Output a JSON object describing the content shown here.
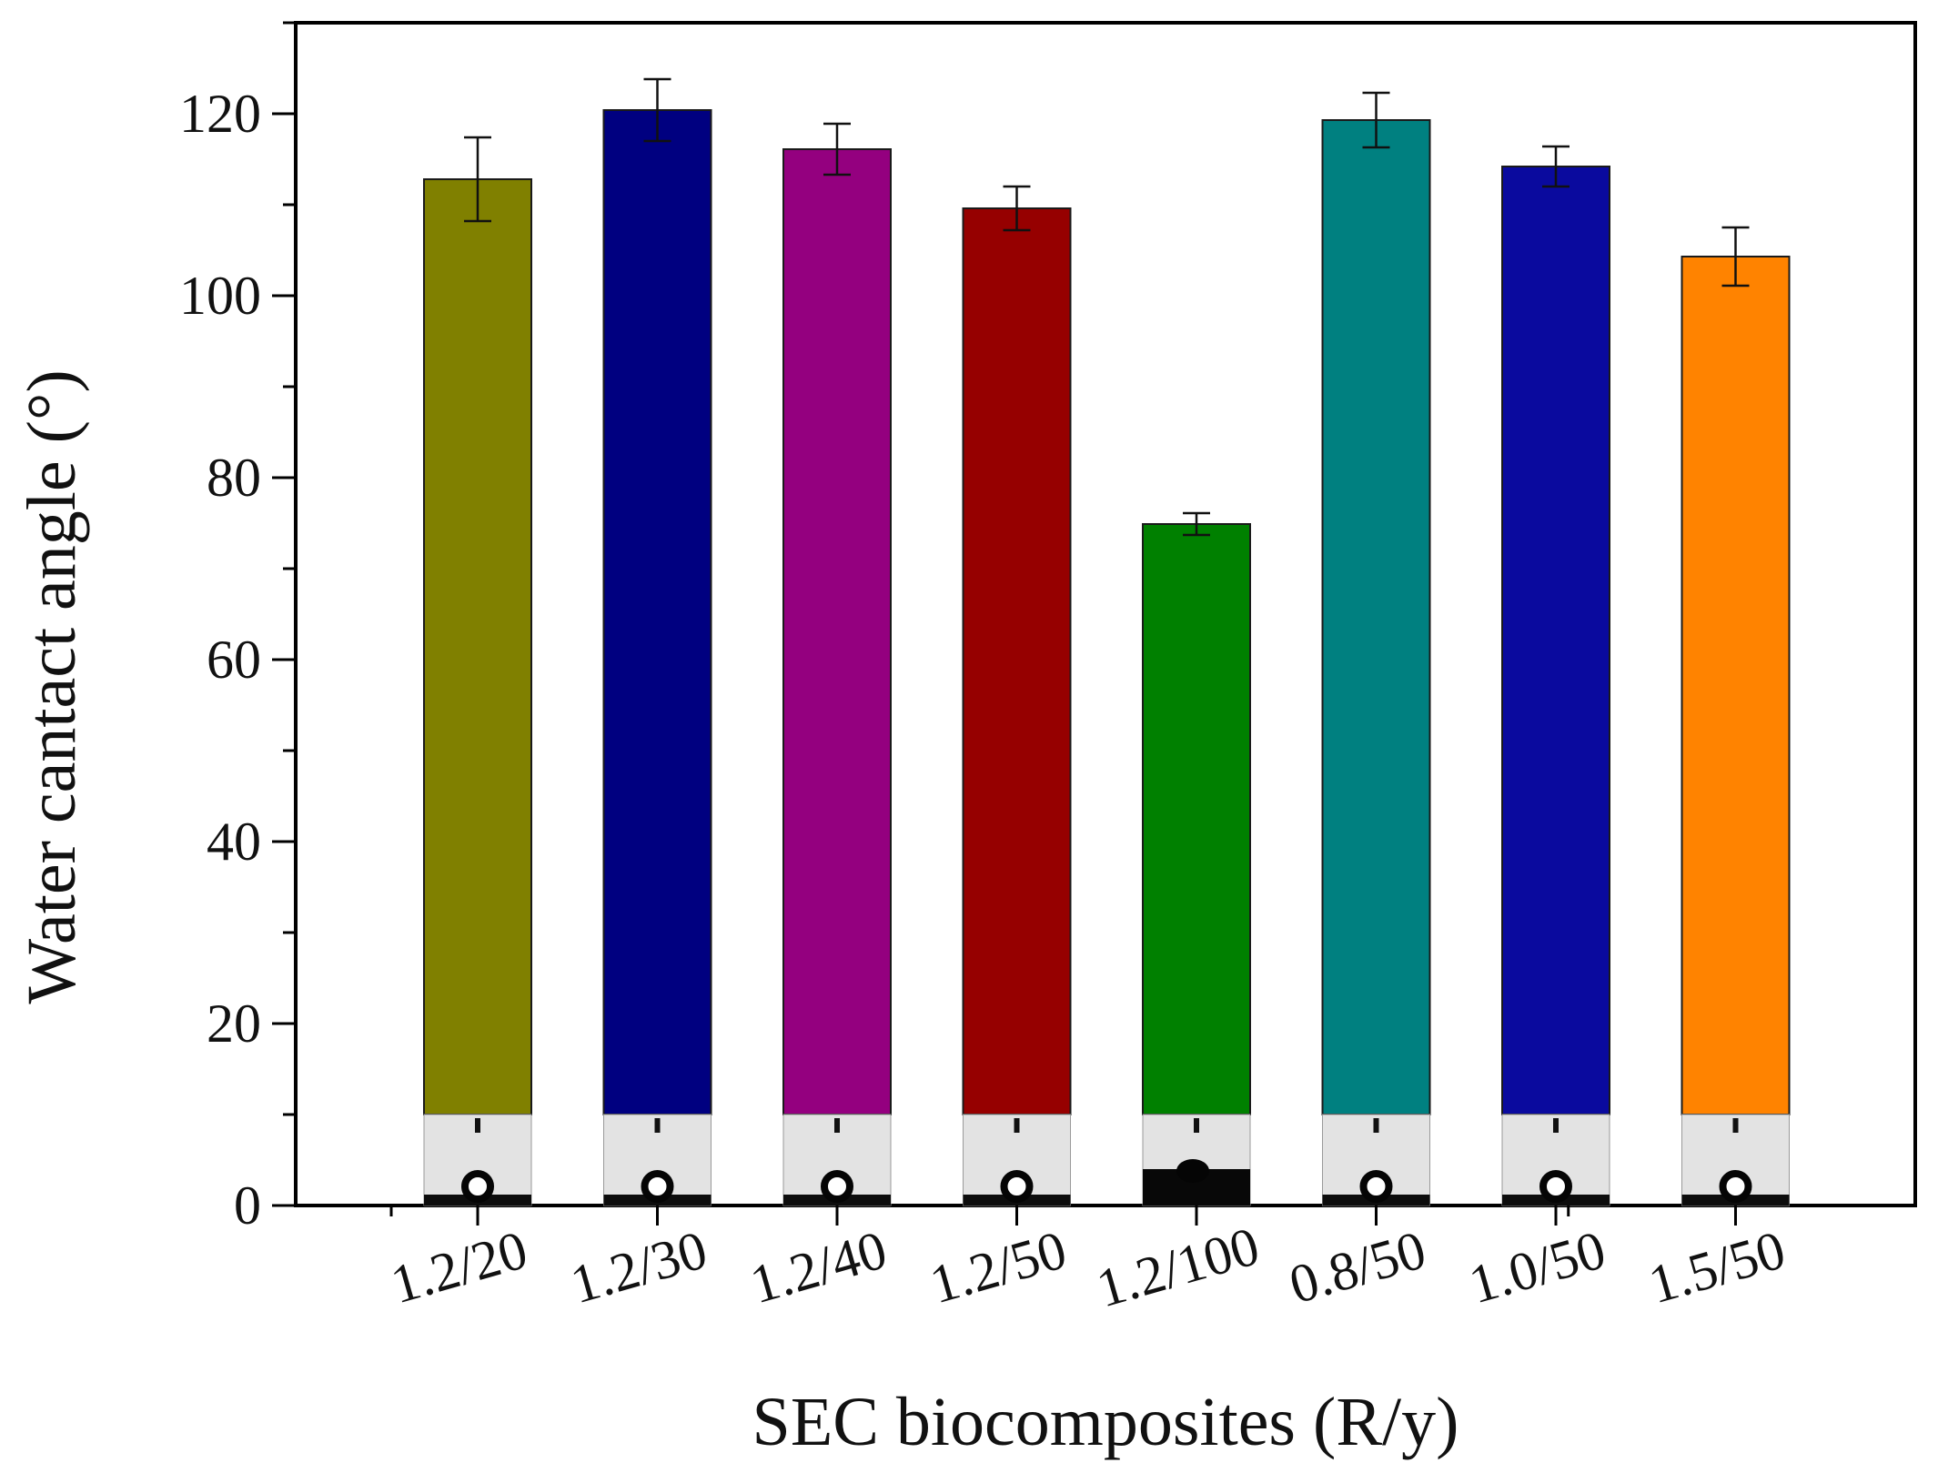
{
  "chart_data": {
    "type": "bar",
    "title": "",
    "xlabel": "SEC biocomposites (R/y)",
    "ylabel": "Water cantact angle (°)",
    "ylim": [
      0,
      130
    ],
    "yticks": [
      0,
      20,
      40,
      60,
      80,
      100,
      120
    ],
    "categories": [
      "1.2/20",
      "1.2/30",
      "1.2/40",
      "1.2/50",
      "1.2/100",
      "0.8/50",
      "1.0/50",
      "1.5/50"
    ],
    "values": [
      112.8,
      120.4,
      116.1,
      109.6,
      74.9,
      119.3,
      114.2,
      104.3
    ],
    "errors": [
      4.6,
      3.4,
      2.8,
      2.4,
      1.2,
      3.0,
      2.2,
      3.2
    ],
    "bar_colors": [
      "#808000",
      "#000080",
      "#94007f",
      "#960000",
      "#008000",
      "#008080",
      "#0a0a9e",
      "#ff8300"
    ],
    "grid": false,
    "inset": "droplet photograph at base of each bar"
  }
}
